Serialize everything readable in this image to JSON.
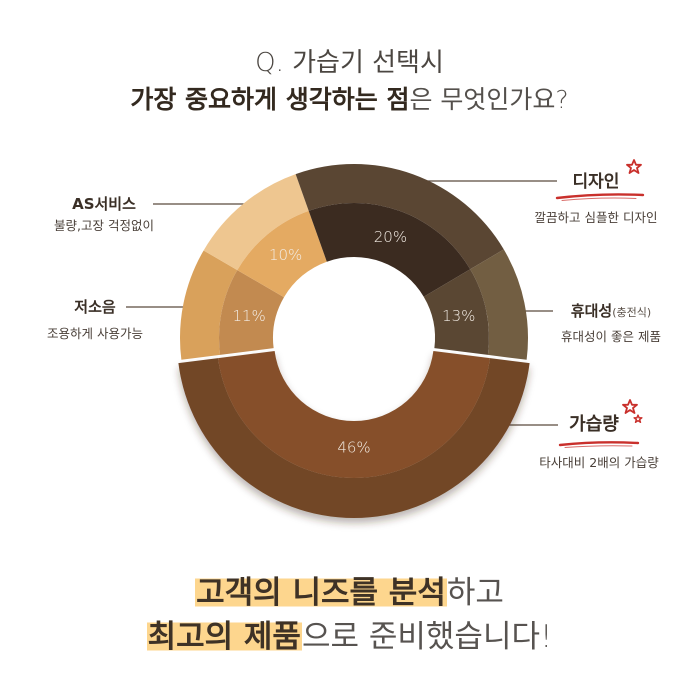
{
  "title": {
    "line1": "Q. 가습기 선택시",
    "line2_bold": "가장 중요하게 생각하는 점",
    "line2_light": "은 무엇인가요?"
  },
  "labels": {
    "as_service": {
      "title": "AS서비스",
      "desc": "불량,고장 걱정없이"
    },
    "low_noise": {
      "title": "저소음",
      "desc": "조용하게 사용가능"
    },
    "design": {
      "title": "디자인",
      "desc": "깔끔하고 심플한 디자인"
    },
    "portability": {
      "title": "휴대성",
      "note": "(충전식)",
      "desc": "휴대성이 좋은 제품"
    },
    "humidification": {
      "title": "가습량",
      "desc": "타사대비 2배의 가습량"
    }
  },
  "footer": {
    "line1_highlight": "고객의 니즈를 분석",
    "line1_rest": "하고",
    "line2_highlight": "최고의 제품",
    "line2_rest": "으로 준비했습니다!"
  },
  "colors": {
    "accent_red": "#c9302c",
    "highlight_yellow": "#fdd68e",
    "leader_line": "#5a4a3e"
  },
  "chart_data": {
    "type": "pie",
    "donut": true,
    "title": "Q. 가습기 선택시 가장 중요하게 생각하는 점은 무엇인가요?",
    "categories": [
      "가습량",
      "저소음",
      "AS서비스",
      "디자인",
      "휴대성(충전식)"
    ],
    "values": [
      46,
      11,
      10,
      20,
      13
    ],
    "value_labels": [
      "46%",
      "11%",
      "10%",
      "20%",
      "13%"
    ],
    "unit": "%",
    "colors_outer": [
      "#724626",
      "#d9a15b",
      "#eec690",
      "#5a4633",
      "#725e42"
    ],
    "colors_inner": [
      "#86502a",
      "#c28a50",
      "#e4aa62",
      "#3b2b20",
      "#5a4733"
    ],
    "exploded_index": 0,
    "legend": "none (callout labels)",
    "layout": {
      "boundaries_deg": [
        97.2,
        262.8,
        300.2,
        340.4,
        419.4,
        457.2
      ]
    }
  }
}
